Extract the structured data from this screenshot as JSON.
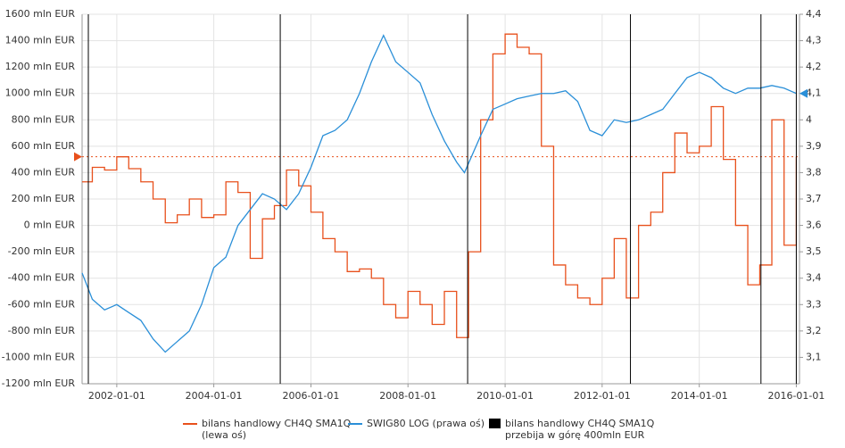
{
  "chart_data": {
    "type": "line",
    "xlim": [
      "2001-04-15",
      "2016-01-25"
    ],
    "xticks": [
      "2002-01-01",
      "2004-01-01",
      "2006-01-01",
      "2008-01-01",
      "2010-01-01",
      "2012-01-01",
      "2014-01-01",
      "2016-01-01"
    ],
    "ylim": [
      -1200,
      1600
    ],
    "yticks": [
      {
        "value": -1200,
        "label": "-1200 mln EUR"
      },
      {
        "value": -1000,
        "label": "-1000 mln EUR"
      },
      {
        "value": -800,
        "label": "-800 mln EUR"
      },
      {
        "value": -600,
        "label": "-600 mln EUR"
      },
      {
        "value": -400,
        "label": "-400 mln EUR"
      },
      {
        "value": -200,
        "label": "-200 mln EUR"
      },
      {
        "value": 0,
        "label": "0 mln EUR"
      },
      {
        "value": 200,
        "label": "200 mln EUR"
      },
      {
        "value": 400,
        "label": "400 mln EUR"
      },
      {
        "value": 600,
        "label": "600 mln EUR"
      },
      {
        "value": 800,
        "label": "800 mln EUR"
      },
      {
        "value": 1000,
        "label": "1000 mln EUR"
      },
      {
        "value": 1200,
        "label": "1200 mln EUR"
      },
      {
        "value": 1400,
        "label": "1400 mln EUR"
      },
      {
        "value": 1600,
        "label": "1600 mln EUR"
      }
    ],
    "y2lim": [
      3.0,
      4.4
    ],
    "y2ticks": [
      {
        "value": 3.1,
        "label": "3,1"
      },
      {
        "value": 3.2,
        "label": "3,2"
      },
      {
        "value": 3.3,
        "label": "3,3"
      },
      {
        "value": 3.4,
        "label": "3,4"
      },
      {
        "value": 3.5,
        "label": "3,5"
      },
      {
        "value": 3.6,
        "label": "3,6"
      },
      {
        "value": 3.7,
        "label": "3,7"
      },
      {
        "value": 3.8,
        "label": "3,8"
      },
      {
        "value": 3.9,
        "label": "3,9"
      },
      {
        "value": 4.0,
        "label": "4"
      },
      {
        "value": 4.1,
        "label": "4,1"
      },
      {
        "value": 4.2,
        "label": "4,2"
      },
      {
        "value": 4.3,
        "label": "4,3"
      },
      {
        "value": 4.4,
        "label": "4,4"
      }
    ],
    "grid": true,
    "series": [
      {
        "name": "bilans handlowy  CH4Q SMA1Q\n(lewa oś)",
        "color": "#e8501c",
        "style": "step",
        "x": [
          "2001-04-15",
          "2001-07-01",
          "2001-10-01",
          "2002-01-01",
          "2002-04-01",
          "2002-07-01",
          "2002-10-01",
          "2003-01-01",
          "2003-04-01",
          "2003-07-01",
          "2003-10-01",
          "2004-01-01",
          "2004-04-01",
          "2004-07-01",
          "2004-10-01",
          "2005-01-01",
          "2005-04-01",
          "2005-07-01",
          "2005-10-01",
          "2006-01-01",
          "2006-04-01",
          "2006-07-01",
          "2006-10-01",
          "2007-01-01",
          "2007-04-01",
          "2007-07-01",
          "2007-10-01",
          "2008-01-01",
          "2008-04-01",
          "2008-07-01",
          "2008-10-01",
          "2009-01-01",
          "2009-04-01",
          "2009-07-01",
          "2009-10-01",
          "2010-01-01",
          "2010-04-01",
          "2010-07-01",
          "2010-10-01",
          "2011-01-01",
          "2011-04-01",
          "2011-07-01",
          "2011-10-01",
          "2012-01-01",
          "2012-04-01",
          "2012-07-01",
          "2012-10-01",
          "2013-01-01",
          "2013-04-01",
          "2013-07-01",
          "2013-10-01",
          "2014-01-01",
          "2014-04-01",
          "2014-07-01",
          "2014-10-01",
          "2015-01-01",
          "2015-04-01",
          "2015-07-01",
          "2015-10-01",
          "2016-01-01"
        ],
        "values": [
          330,
          440,
          420,
          520,
          430,
          330,
          200,
          20,
          80,
          200,
          60,
          80,
          330,
          250,
          -250,
          50,
          150,
          420,
          300,
          100,
          -100,
          -200,
          -350,
          -330,
          -400,
          -600,
          -700,
          -500,
          -600,
          -750,
          -500,
          -850,
          -200,
          800,
          1300,
          1450,
          1350,
          1300,
          600,
          -300,
          -450,
          -550,
          -600,
          -400,
          -100,
          -550,
          0,
          100,
          400,
          700,
          550,
          600,
          900,
          500,
          0,
          -450,
          -300,
          800,
          -150,
          520
        ]
      },
      {
        "name": "SWIG80  LOG (prawa oś)",
        "color": "#2a8fd8",
        "axis": "y2",
        "x": [
          "2001-04-15",
          "2001-07-01",
          "2001-10-01",
          "2002-01-01",
          "2002-04-01",
          "2002-07-01",
          "2002-10-01",
          "2003-01-01",
          "2003-04-01",
          "2003-07-01",
          "2003-10-01",
          "2004-01-01",
          "2004-04-01",
          "2004-07-01",
          "2004-10-01",
          "2005-01-01",
          "2005-04-01",
          "2005-07-01",
          "2005-10-01",
          "2006-01-01",
          "2006-04-01",
          "2006-07-01",
          "2006-10-01",
          "2007-01-01",
          "2007-04-01",
          "2007-07-01",
          "2007-10-01",
          "2008-01-01",
          "2008-04-01",
          "2008-07-01",
          "2008-10-01",
          "2009-01-01",
          "2009-03-01",
          "2009-07-01",
          "2009-10-01",
          "2010-01-01",
          "2010-04-01",
          "2010-07-01",
          "2010-10-01",
          "2011-01-01",
          "2011-04-01",
          "2011-07-01",
          "2011-10-01",
          "2012-01-01",
          "2012-04-01",
          "2012-07-01",
          "2012-10-01",
          "2013-01-01",
          "2013-04-01",
          "2013-07-01",
          "2013-10-01",
          "2014-01-01",
          "2014-04-01",
          "2014-07-01",
          "2014-10-01",
          "2015-01-01",
          "2015-04-01",
          "2015-07-01",
          "2015-10-01",
          "2016-01-01"
        ],
        "values": [
          3.42,
          3.32,
          3.28,
          3.3,
          3.27,
          3.24,
          3.17,
          3.12,
          3.16,
          3.2,
          3.3,
          3.44,
          3.48,
          3.6,
          3.66,
          3.72,
          3.7,
          3.66,
          3.72,
          3.82,
          3.94,
          3.96,
          4.0,
          4.1,
          4.22,
          4.32,
          4.22,
          4.18,
          4.14,
          4.02,
          3.92,
          3.84,
          3.8,
          3.94,
          4.04,
          4.06,
          4.08,
          4.09,
          4.1,
          4.1,
          4.11,
          4.07,
          3.96,
          3.94,
          4.0,
          3.99,
          4.0,
          4.02,
          4.04,
          4.1,
          4.16,
          4.18,
          4.16,
          4.12,
          4.1,
          4.12,
          4.12,
          4.13,
          4.12,
          4.1
        ]
      },
      {
        "name": "bilans handlowy  CH4Q SMA1Q\nprzebija w górę 400mln EUR",
        "color": "#000000",
        "style": "events",
        "x": [
          "2001-06-01",
          "2005-05-15",
          "2009-03-25",
          "2012-08-01",
          "2015-04-10",
          "2016-01-01"
        ]
      }
    ]
  }
}
